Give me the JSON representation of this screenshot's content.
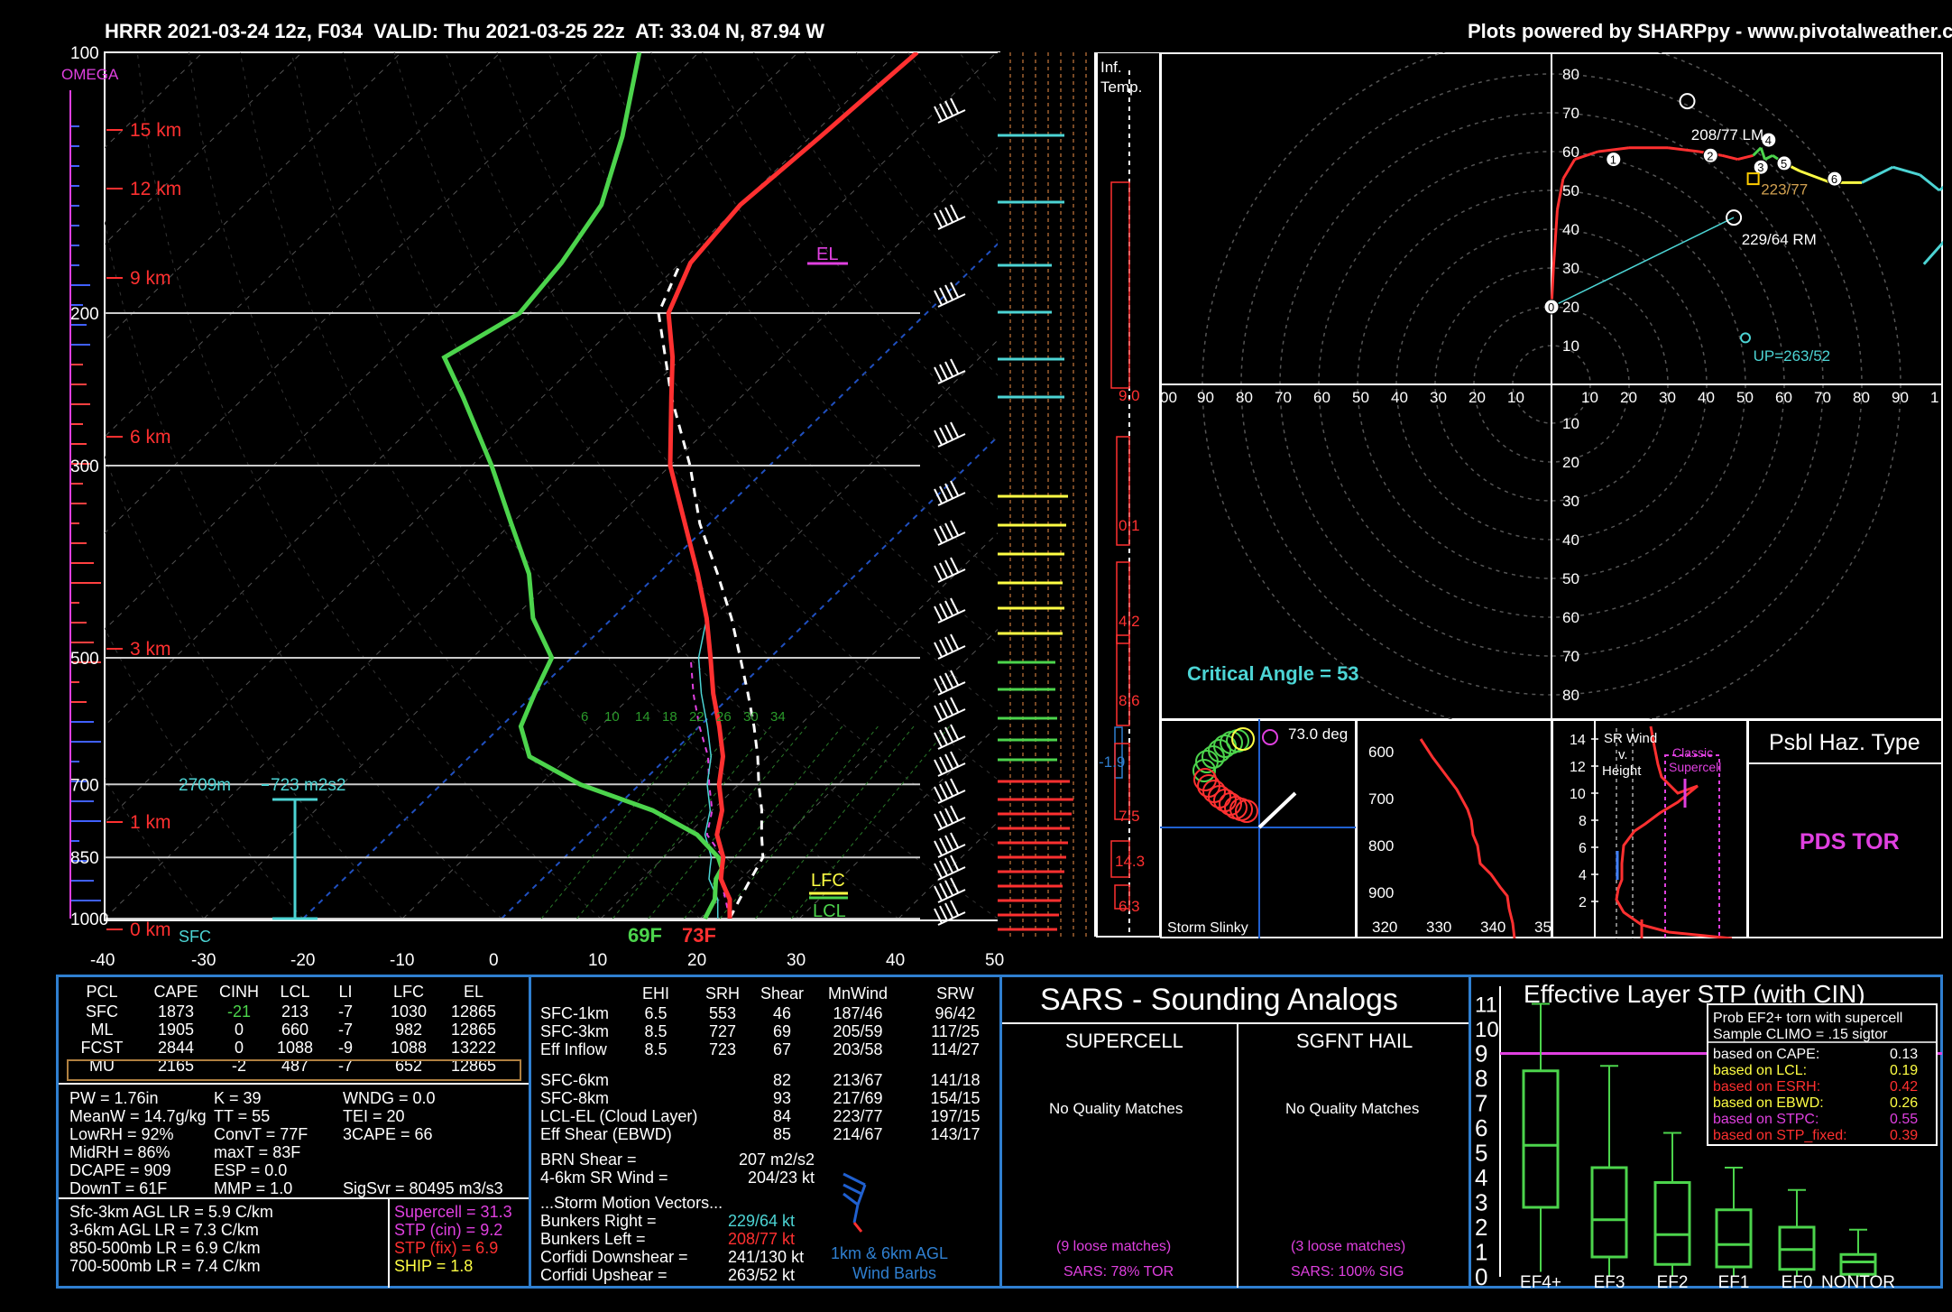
{
  "header": {
    "left": "HRRR 2021-03-24 12z, F034  VALID: Thu 2021-03-25 22z  AT: 33.04 N, 87.94 W",
    "right": "Plots powered by SHARPpy - www.pivotalweather.com"
  },
  "skewt": {
    "omega_label": "OMEGA",
    "pressure_labels": [
      "100",
      "200",
      "300",
      "500",
      "700",
      "850",
      "1000"
    ],
    "height_labels": [
      "15 km",
      "12 km",
      "9 km",
      "6 km",
      "3 km",
      "1 km",
      "0 km"
    ],
    "temp_ticks": [
      "-40",
      "-30",
      "-20",
      "-10",
      "0",
      "10",
      "20",
      "30",
      "40",
      "50"
    ],
    "el_label": "EL",
    "lfc_label": "LFC",
    "lcl_label": "LCL",
    "sfc_label": "SFC",
    "sfc_dew": "69F",
    "sfc_temp": "73F",
    "eff_depth_label": "2709m",
    "eff_srh_label": "723 m2s2",
    "mixing_ratio_labels": [
      "6",
      "10",
      "14",
      "18",
      "22",
      "26",
      "30",
      "34"
    ]
  },
  "inflow": {
    "title": "Inf.\nTemp.",
    "values": [
      "9.0",
      "0.1",
      "4.2",
      "8.6",
      "-1.9",
      "7.5",
      "14.3",
      "6.3"
    ]
  },
  "hodograph": {
    "rings_label": [
      "10",
      "20",
      "30",
      "40",
      "50",
      "60",
      "70",
      "80",
      "90"
    ],
    "pos_labels": [
      "80",
      "70",
      "60",
      "50",
      "40",
      "30",
      "20",
      "10"
    ],
    "neg_labels": [
      "10",
      "20",
      "30",
      "40",
      "50",
      "60",
      "70",
      "80"
    ],
    "x_left": [
      "00",
      "90",
      "80",
      "70",
      "60",
      "50",
      "40",
      "30",
      "20",
      "10"
    ],
    "x_right": [
      "10",
      "20",
      "30",
      "40",
      "50",
      "60",
      "70",
      "80",
      "90",
      "1"
    ],
    "lm_label": "208/77 LM",
    "mean_label": "223/77",
    "rm_label": "229/64 RM",
    "up_label": "UP=263/52",
    "critical_angle": "Critical Angle = 53"
  },
  "slinky": {
    "angle": "73.0 deg",
    "label": "Storm Slinky"
  },
  "thetae": {
    "y_labels": [
      "600",
      "700",
      "800",
      "900"
    ],
    "x_labels": [
      "320",
      "330",
      "340",
      "35"
    ]
  },
  "srwind": {
    "title": "SR Wind\nv.\nHeight",
    "y_labels": [
      "14",
      "12",
      "10",
      "8",
      "6",
      "4",
      "2"
    ],
    "classic": "Classic\nSupercell"
  },
  "hazard": {
    "title": "Psbl Haz. Type",
    "value": "PDS TOR"
  },
  "parcels": {
    "headers": [
      "PCL",
      "CAPE",
      "CINH",
      "LCL",
      "LI",
      "LFC",
      "EL"
    ],
    "rows": [
      [
        "SFC",
        "1873",
        "-21",
        "213",
        "-7",
        "1030",
        "12865"
      ],
      [
        "ML",
        "1905",
        "0",
        "660",
        "-7",
        "982",
        "12865"
      ],
      [
        "FCST",
        "2844",
        "0",
        "1088",
        "-9",
        "1088",
        "13222"
      ],
      [
        "MU",
        "2165",
        "-2",
        "487",
        "-7",
        "652",
        "12865"
      ]
    ]
  },
  "indices": {
    "col1": [
      "PW = 1.76in",
      "MeanW = 14.7g/kg",
      "LowRH = 92%",
      "MidRH = 86%",
      "DCAPE = 909",
      "DownT = 61F"
    ],
    "col2": [
      "K = 39",
      "TT = 55",
      "ConvT = 77F",
      "maxT = 83F",
      "ESP = 0.0",
      "MMP = 1.0"
    ],
    "col3": [
      "WNDG = 0.0",
      "TEI = 20",
      "3CAPE = 66",
      "",
      "",
      "SigSvr = 80495 m3/s3"
    ]
  },
  "lapse": [
    "Sfc-3km AGL LR = 5.9 C/km",
    "3-6km AGL LR = 7.3 C/km",
    "850-500mb LR = 6.9 C/km",
    "700-500mb LR = 7.4 C/km"
  ],
  "composite": [
    "Supercell = 31.3",
    "STP (cin) = 9.2",
    "STP (fix) = 6.9",
    "SHIP = 1.8"
  ],
  "kinematic": {
    "headers": [
      "EHI",
      "SRH",
      "Shear",
      "MnWind",
      "SRW"
    ],
    "rows": [
      [
        "SFC-1km",
        "6.5",
        "553",
        "46",
        "187/46",
        "96/42"
      ],
      [
        "SFC-3km",
        "8.5",
        "727",
        "69",
        "205/59",
        "117/25"
      ],
      [
        "Eff Inflow",
        "8.5",
        "723",
        "67",
        "203/58",
        "114/27"
      ],
      [
        "SFC-6km",
        "",
        "",
        "82",
        "213/67",
        "141/18"
      ],
      [
        "SFC-8km",
        "",
        "",
        "93",
        "217/69",
        "154/15"
      ],
      [
        "LCL-EL (Cloud Layer)",
        "",
        "",
        "84",
        "223/77",
        "197/15"
      ],
      [
        "Eff Shear (EBWD)",
        "",
        "",
        "85",
        "214/67",
        "143/17"
      ]
    ],
    "brn_label": "BRN Shear =",
    "brn_value": "207 m2/s2",
    "srw46_label": "4-6km SR Wind =",
    "srw46_value": "204/23 kt",
    "motion_title": "...Storm Motion Vectors...",
    "motions": [
      [
        "Bunkers Right =",
        "229/64 kt"
      ],
      [
        "Bunkers Left =",
        "208/77 kt"
      ],
      [
        "Corfidi Downshear =",
        "241/130 kt"
      ],
      [
        "Corfidi Upshear =",
        "263/52 kt"
      ]
    ],
    "barb_caption": "1km & 6km AGL\nWind Barbs"
  },
  "sars": {
    "title": "SARS - Sounding Analogs",
    "col1_title": "SUPERCELL",
    "col2_title": "SGFNT HAIL",
    "col1_match": "No Quality Matches",
    "col2_match": "No Quality Matches",
    "col1_loose": "(9 loose matches)",
    "col2_loose": "(3 loose matches)",
    "col1_result": "SARS: 78% TOR",
    "col2_result": "SARS: 100% SIG"
  },
  "stp_box": {
    "title": "Effective Layer STP (with CIN)",
    "prob_title": "Prob EF2+ torn with supercell",
    "sample": "Sample CLIMO = .15 sigtor",
    "rows": [
      [
        "based on CAPE:",
        "0.13"
      ],
      [
        "based on LCL:",
        "0.19"
      ],
      [
        "based on ESRH:",
        "0.42"
      ],
      [
        "based on EBWD:",
        "0.26"
      ],
      [
        "based on STPC:",
        "0.55"
      ],
      [
        "based on STP_fixed:",
        "0.39"
      ]
    ],
    "row_colors": [
      "#ffffff",
      "#ffff44",
      "#ff3030",
      "#ffff44",
      "#e040e0",
      "#ff3030"
    ]
  },
  "chart_data": [
    {
      "type": "line",
      "title": "HRRR 2021-03-24 12z, F034  VALID: Thu 2021-03-25 22z  AT: 33.04 N, 87.94 W",
      "xlabel": "",
      "ylabel": "",
      "xlim": [
        -40,
        50
      ],
      "ylim": [
        1000,
        100
      ],
      "y_scale": "log",
      "series": [
        {
          "values_p": [
            1000,
            975,
            950,
            925,
            900,
            875,
            850,
            800,
            750,
            700,
            650,
            600,
            550,
            500,
            450,
            400,
            350,
            300,
            250,
            225,
            200,
            175,
            150,
            125,
            100
          ],
          "values": [
            23,
            22,
            21,
            19.5,
            18,
            17,
            16,
            13,
            11,
            8,
            5.5,
            2,
            -2,
            -6,
            -10.5,
            -16,
            -22.5,
            -30,
            -37,
            -41,
            -46,
            -49,
            -50,
            -49,
            -48
          ]
        },
        {
          "values_p": [
            1000,
            975,
            950,
            925,
            900,
            875,
            850,
            800,
            750,
            700,
            650,
            600,
            550,
            500,
            450,
            400,
            350,
            300,
            250,
            225,
            200,
            175,
            150,
            125,
            100
          ],
          "values": [
            20.5,
            20,
            19.5,
            18.5,
            17.5,
            17,
            15.5,
            11,
            4,
            -6,
            -14,
            -18,
            -20,
            -22,
            -28,
            -33,
            -40,
            -48,
            -58,
            -64,
            -61,
            -62,
            -64,
            -69,
            -76
          ]
        },
        {
          "values_p": [
            1000,
            950,
            900,
            850,
            800,
            750,
            700,
            650,
            600,
            550,
            500,
            450,
            400,
            350,
            300,
            250,
            200,
            175
          ],
          "values": [
            23,
            22,
            21,
            20,
            17.5,
            15,
            12,
            9,
            5.5,
            1.5,
            -3,
            -8,
            -14,
            -21,
            -28,
            -37,
            -47,
            -50
          ]
        },
        {
          "values_p": [
            1000,
            900,
            850,
            800,
            750,
            700,
            650,
            600,
            550,
            500
          ],
          "values": [
            23,
            18,
            16,
            12,
            10,
            7,
            4,
            0,
            -4,
            -8
          ]
        }
      ]
    },
    {
      "type": "scatter",
      "title": "",
      "xlabel": "",
      "ylabel": "",
      "xlim": [
        -100,
        100
      ],
      "ylim": [
        -85,
        85
      ],
      "series": [
        {
          "x": [
            0,
            0.5,
            1.5,
            3,
            6,
            12,
            20,
            30,
            38,
            44,
            48,
            52,
            54,
            55,
            57,
            60,
            64,
            72,
            80,
            88,
            95,
            100
          ],
          "y": [
            20,
            30,
            45,
            53,
            58,
            60,
            61,
            61,
            60,
            59,
            58,
            59,
            61,
            58,
            59,
            57,
            55,
            52,
            52,
            56,
            54,
            50
          ]
        }
      ]
    },
    {
      "type": "bar",
      "title": "Effective Layer STP (with CIN)",
      "xlabel": "",
      "ylabel": "",
      "categories": [
        "EF4+",
        "EF3",
        "EF2",
        "EF1",
        "EF0",
        "NONTOR"
      ],
      "ylim": [
        0,
        11
      ],
      "series": [
        {
          "values_whisker_low": [
            0.2,
            0,
            0,
            0,
            0,
            0
          ],
          "values_q1": [
            2.8,
            0.8,
            0.5,
            0.4,
            0.3,
            0.1
          ],
          "values_median": [
            5.3,
            2.3,
            1.7,
            1.3,
            1.1,
            0.6
          ],
          "values_q3": [
            8.3,
            4.4,
            3.8,
            2.7,
            2.0,
            0.9
          ],
          "values_whisker_high": [
            11,
            8.5,
            5.8,
            4.4,
            3.5,
            1.9
          ]
        }
      ]
    }
  ]
}
